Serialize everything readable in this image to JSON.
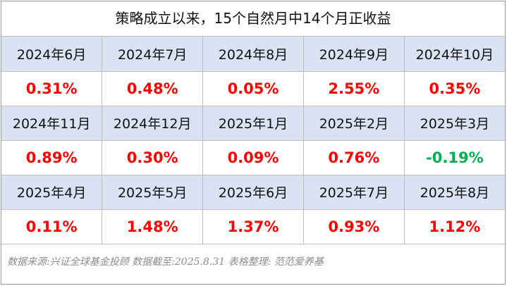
{
  "title": "策略成立以来，15个自然月中14个月正收益",
  "table": {
    "rows": [
      [
        "2024年6月",
        "2024年7月",
        "2024年8月",
        "2024年9月",
        "2024年10月"
      ],
      [
        "0.31%",
        "0.48%",
        "0.05%",
        "2.55%",
        "0.35%"
      ],
      [
        "2024年11月",
        "2024年12月",
        "2025年1月",
        "2025年2月",
        "2025年3月"
      ],
      [
        "0.89%",
        "0.30%",
        "0.09%",
        "0.76%",
        "-0.19%"
      ],
      [
        "2025年4月",
        "2025年5月",
        "2025年6月",
        "2025年7月",
        "2025年8月"
      ],
      [
        "0.11%",
        "1.48%",
        "1.37%",
        "0.93%",
        "1.12%"
      ]
    ]
  },
  "footer": "数据来源:兴证全球基金投顾 数据截至:2025.8.31 表格整理: 范范爱养基"
}
